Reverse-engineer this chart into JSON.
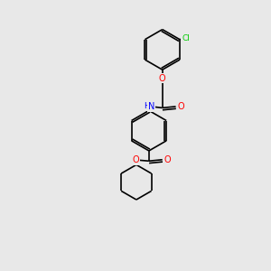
{
  "bg_color": "#e8e8e8",
  "atom_colors": {
    "C": "#000000",
    "H": "#000000",
    "N": "#0000ff",
    "O": "#ff0000",
    "Cl": "#00cc00"
  },
  "bond_color": "#000000",
  "bond_width": 1.2,
  "figsize": [
    3.0,
    3.0
  ],
  "dpi": 100
}
